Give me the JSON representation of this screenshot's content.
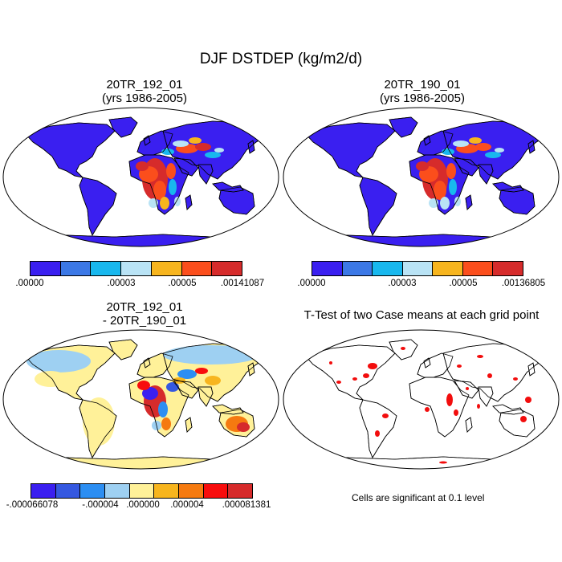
{
  "figure": {
    "title": "DJF DSTDEP (kg/m2/d)"
  },
  "panels": [
    {
      "title_line1": "20TR_192_01",
      "title_line2": "(yrs 1986-2005)",
      "colorbar": {
        "colors": [
          "#3a1ff0",
          "#3c78e6",
          "#18b8ee",
          "#b9e3f5",
          "#f7b51e",
          "#fb4e1c",
          "#d62b2b"
        ],
        "labels": [
          ".00000",
          ".00003",
          ".00005",
          ".00141087"
        ]
      }
    },
    {
      "title_line1": "20TR_190_01",
      "title_line2": "(yrs 1986-2005)",
      "colorbar": {
        "colors": [
          "#3a1ff0",
          "#3c78e6",
          "#18b8ee",
          "#b9e3f5",
          "#f7b51e",
          "#fb4e1c",
          "#d62b2b"
        ],
        "labels": [
          ".00000",
          ".00003",
          ".00005",
          ".00136805"
        ]
      }
    },
    {
      "title_line1": "20TR_192_01",
      "title_line2": "- 20TR_190_01",
      "colorbar": {
        "colors": [
          "#3a1ff0",
          "#3558e0",
          "#2c8ef2",
          "#9ed0f2",
          "#fff199",
          "#f7b51e",
          "#f57a10",
          "#f80d0d",
          "#d62b2b"
        ],
        "labels": [
          "-.000066078",
          "-.000004",
          ".000000",
          ".000004",
          ".000081381"
        ]
      }
    },
    {
      "title_line1": "T-Test of two Case means at each grid point",
      "note": "Cells are significant at 0.1 level"
    }
  ],
  "map_colors": {
    "ocean": "#ffffff",
    "land_low": "#3a1ff0",
    "diff_pos_small": "#fff199",
    "diff_neg_small": "#9ed0f2",
    "significant": "#f20d0d"
  }
}
